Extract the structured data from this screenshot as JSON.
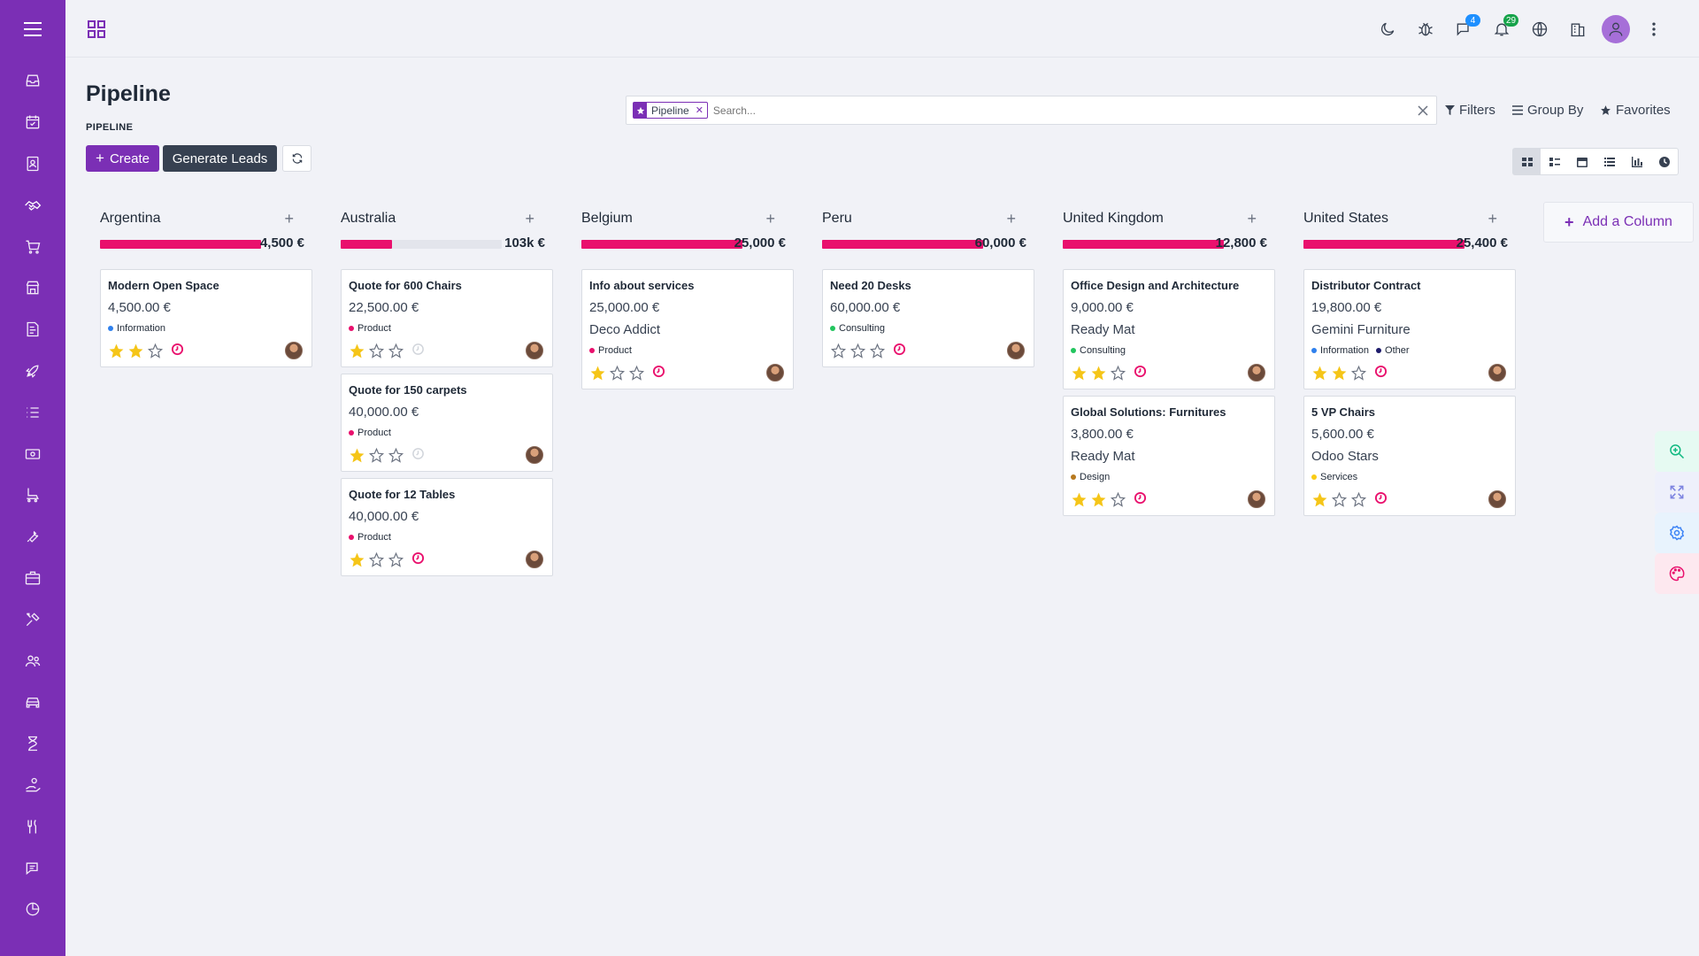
{
  "app": {
    "page_title": "Pipeline",
    "breadcrumb": "PIPELINE",
    "create_label": "Create",
    "generate_leads_label": "Generate Leads"
  },
  "sidebar": {
    "menu_icon": "hamburger-icon",
    "items": [
      {
        "name": "inbox-icon"
      },
      {
        "name": "calendar-check-icon"
      },
      {
        "name": "contacts-icon"
      },
      {
        "name": "crm-handshake-icon",
        "active": true
      },
      {
        "name": "cart-icon"
      },
      {
        "name": "store-icon"
      },
      {
        "name": "invoice-icon"
      },
      {
        "name": "rocket-icon"
      },
      {
        "name": "tasks-list-icon"
      },
      {
        "name": "money-icon"
      },
      {
        "name": "skate-icon"
      },
      {
        "name": "wrench-icon"
      },
      {
        "name": "briefcase-icon"
      },
      {
        "name": "tools-icon"
      },
      {
        "name": "users-icon"
      },
      {
        "name": "car-icon"
      },
      {
        "name": "hourglass-icon"
      },
      {
        "name": "hand-coin-icon"
      },
      {
        "name": "utensils-icon"
      },
      {
        "name": "chat-icon"
      },
      {
        "name": "pie-chart-icon"
      }
    ]
  },
  "topbar": {
    "chat_badge": "4",
    "notif_badge": "29",
    "colors": {
      "chat_badge": "#1e90ff",
      "notif_badge": "#16a34a"
    }
  },
  "search": {
    "facet_label": "Pipeline",
    "placeholder": "Search...",
    "filters_label": "Filters",
    "groupby_label": "Group By",
    "favorites_label": "Favorites"
  },
  "add_column_label": "Add a Column",
  "columns": [
    {
      "title": "Argentina",
      "sum": "4,500 €",
      "progress": 1.0,
      "cards": [
        {
          "title": "Modern Open Space",
          "amount": "4,500.00 €",
          "partner": "",
          "tags": [
            {
              "label": "Information",
              "color": "#2f80ed"
            }
          ],
          "stars": 2,
          "activity": "overdue"
        }
      ]
    },
    {
      "title": "Australia",
      "sum": "103k €",
      "progress": 0.32,
      "cards": [
        {
          "title": "Quote for 600 Chairs",
          "amount": "22,500.00 €",
          "partner": "",
          "tags": [
            {
              "label": "Product",
              "color": "#e9106d"
            }
          ],
          "stars": 1,
          "activity": "none"
        },
        {
          "title": "Quote for 150 carpets",
          "amount": "40,000.00 €",
          "partner": "",
          "tags": [
            {
              "label": "Product",
              "color": "#e9106d"
            }
          ],
          "stars": 1,
          "activity": "none"
        },
        {
          "title": "Quote for 12 Tables",
          "amount": "40,000.00 €",
          "partner": "",
          "tags": [
            {
              "label": "Product",
              "color": "#e9106d"
            }
          ],
          "stars": 1,
          "activity": "overdue"
        }
      ]
    },
    {
      "title": "Belgium",
      "sum": "25,000 €",
      "progress": 1.0,
      "cards": [
        {
          "title": "Info about services",
          "amount": "25,000.00 €",
          "partner": "Deco Addict",
          "tags": [
            {
              "label": "Product",
              "color": "#e9106d"
            }
          ],
          "stars": 1,
          "activity": "overdue"
        }
      ]
    },
    {
      "title": "Peru",
      "sum": "60,000 €",
      "progress": 1.0,
      "cards": [
        {
          "title": "Need 20 Desks",
          "amount": "60,000.00 €",
          "partner": "",
          "tags": [
            {
              "label": "Consulting",
              "color": "#22c55e"
            }
          ],
          "stars": 0,
          "activity": "overdue"
        }
      ]
    },
    {
      "title": "United Kingdom",
      "sum": "12,800 €",
      "progress": 1.0,
      "cards": [
        {
          "title": "Office Design and Architecture",
          "amount": "9,000.00 €",
          "partner": "Ready Mat",
          "tags": [
            {
              "label": "Consulting",
              "color": "#22c55e"
            }
          ],
          "stars": 2,
          "activity": "overdue"
        },
        {
          "title": "Global Solutions: Furnitures",
          "amount": "3,800.00 €",
          "partner": "Ready Mat",
          "tags": [
            {
              "label": "Design",
              "color": "#b7791f"
            }
          ],
          "stars": 2,
          "activity": "overdue"
        }
      ]
    },
    {
      "title": "United States",
      "sum": "25,400 €",
      "progress": 1.0,
      "cards": [
        {
          "title": "Distributor Contract",
          "amount": "19,800.00 €",
          "partner": "Gemini Furniture",
          "tags": [
            {
              "label": "Information",
              "color": "#2f80ed"
            },
            {
              "label": "Other",
              "color": "#1e1b6b"
            }
          ],
          "stars": 2,
          "activity": "overdue"
        },
        {
          "title": "5 VP Chairs",
          "amount": "5,600.00 €",
          "partner": "Odoo Stars",
          "tags": [
            {
              "label": "Services",
              "color": "#facc15"
            }
          ],
          "stars": 1,
          "activity": "overdue"
        }
      ]
    }
  ],
  "views": [
    "kanban-view-icon",
    "list-detail-view-icon",
    "calendar-view-icon",
    "list-view-icon",
    "graph-view-icon",
    "activity-view-icon"
  ],
  "floating": [
    "zoom-icon",
    "fullscreen-icon",
    "settings-icon",
    "palette-icon"
  ],
  "colors": {
    "brand": "#7b2fb5",
    "accent": "#e9106d",
    "star": "#f5c518"
  }
}
